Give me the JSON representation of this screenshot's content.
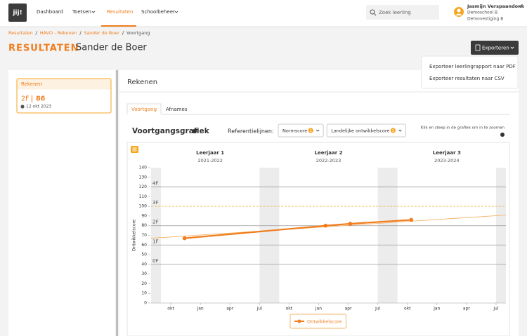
{
  "nav": {
    "logo": "jij!",
    "items": [
      "Dashboard",
      "Toetsen",
      "Resultaten",
      "Schoolbeheer"
    ],
    "search": "Zoek leerling",
    "user": {
      "name": "Jasmijn Verspaandonk",
      "school": "Demoschool B",
      "location": "Demovestiging B"
    }
  },
  "breadcrumb": [
    "Resultaten",
    "HAVO - Rekenen",
    "Sander de Boer",
    "Voortgang"
  ],
  "header": {
    "title": "RESULTATEN",
    "student": "Sander de Boer",
    "export": "Exporteren",
    "export_menu": [
      "Exporteer leerlingrapport naar PDF",
      "Exporteer resultaten naar CSV"
    ]
  },
  "subject_card": {
    "title": "Rekenen",
    "level": "2F",
    "score": 86,
    "date": "12 okt 2023"
  },
  "panel": {
    "title": "Rekenen",
    "tabs": [
      "Voortgang",
      "Afnames"
    ]
  },
  "chart_data": {
    "type": "line",
    "title": "Voortgangsgrafiek",
    "reference_label": "Referentielijnen:",
    "filters": [
      {
        "label": "Normscore",
        "count": 1
      },
      {
        "label": "Landelijke ontwikkelscore",
        "count": 1
      }
    ],
    "hint": "Klik en sleep in de grafiek om in te zoomen",
    "ylabel": "Ontwikkelscore",
    "ylim": [
      0,
      140
    ],
    "yticks": [
      0,
      10,
      20,
      30,
      40,
      50,
      60,
      70,
      80,
      90,
      100,
      110,
      120,
      130,
      140
    ],
    "xlim": [
      0,
      36
    ],
    "xticks": [
      {
        "value": 2,
        "label": "okt"
      },
      {
        "value": 5,
        "label": "jan"
      },
      {
        "value": 8,
        "label": "apr"
      },
      {
        "value": 11,
        "label": "jul"
      },
      {
        "value": 14,
        "label": "okt"
      },
      {
        "value": 17,
        "label": "jan"
      },
      {
        "value": 20,
        "label": "apr"
      },
      {
        "value": 23,
        "label": "jul"
      },
      {
        "value": 26,
        "label": "okt"
      },
      {
        "value": 29,
        "label": "jan"
      },
      {
        "value": 32,
        "label": "apr"
      },
      {
        "value": 35,
        "label": "jul"
      }
    ],
    "shaded": [
      [
        0,
        1
      ],
      [
        11,
        13
      ],
      [
        23,
        25
      ],
      [
        35,
        36
      ]
    ],
    "years": [
      {
        "label": "Leerjaar 1",
        "period": "2021-2022",
        "x": 6
      },
      {
        "label": "Leerjaar 2",
        "period": "2022-2023",
        "x": 18
      },
      {
        "label": "Leerjaar 3",
        "period": "2023-2024",
        "x": 30
      }
    ],
    "reference_lines": [
      {
        "value": 120,
        "label": "4F",
        "color": "#9a9a9a"
      },
      {
        "value": 100,
        "label": "3F",
        "color": "#e8b44a",
        "dashed": true
      },
      {
        "value": 80,
        "label": "2F",
        "color": "#9a9a9a"
      },
      {
        "value": 60,
        "label": "1F",
        "color": "#9a9a9a"
      },
      {
        "value": 40,
        "label": "0F",
        "color": "#9a9a9a"
      }
    ],
    "trend": {
      "color": "#f5b469",
      "x": [
        0,
        36
      ],
      "values": [
        67,
        91
      ]
    },
    "series": [
      {
        "name": "Ontwikkelscore",
        "color": "#f07d1e",
        "x": [
          3.4,
          17.7,
          20.2,
          26.4
        ],
        "values": [
          67,
          80,
          82,
          86
        ]
      }
    ]
  }
}
